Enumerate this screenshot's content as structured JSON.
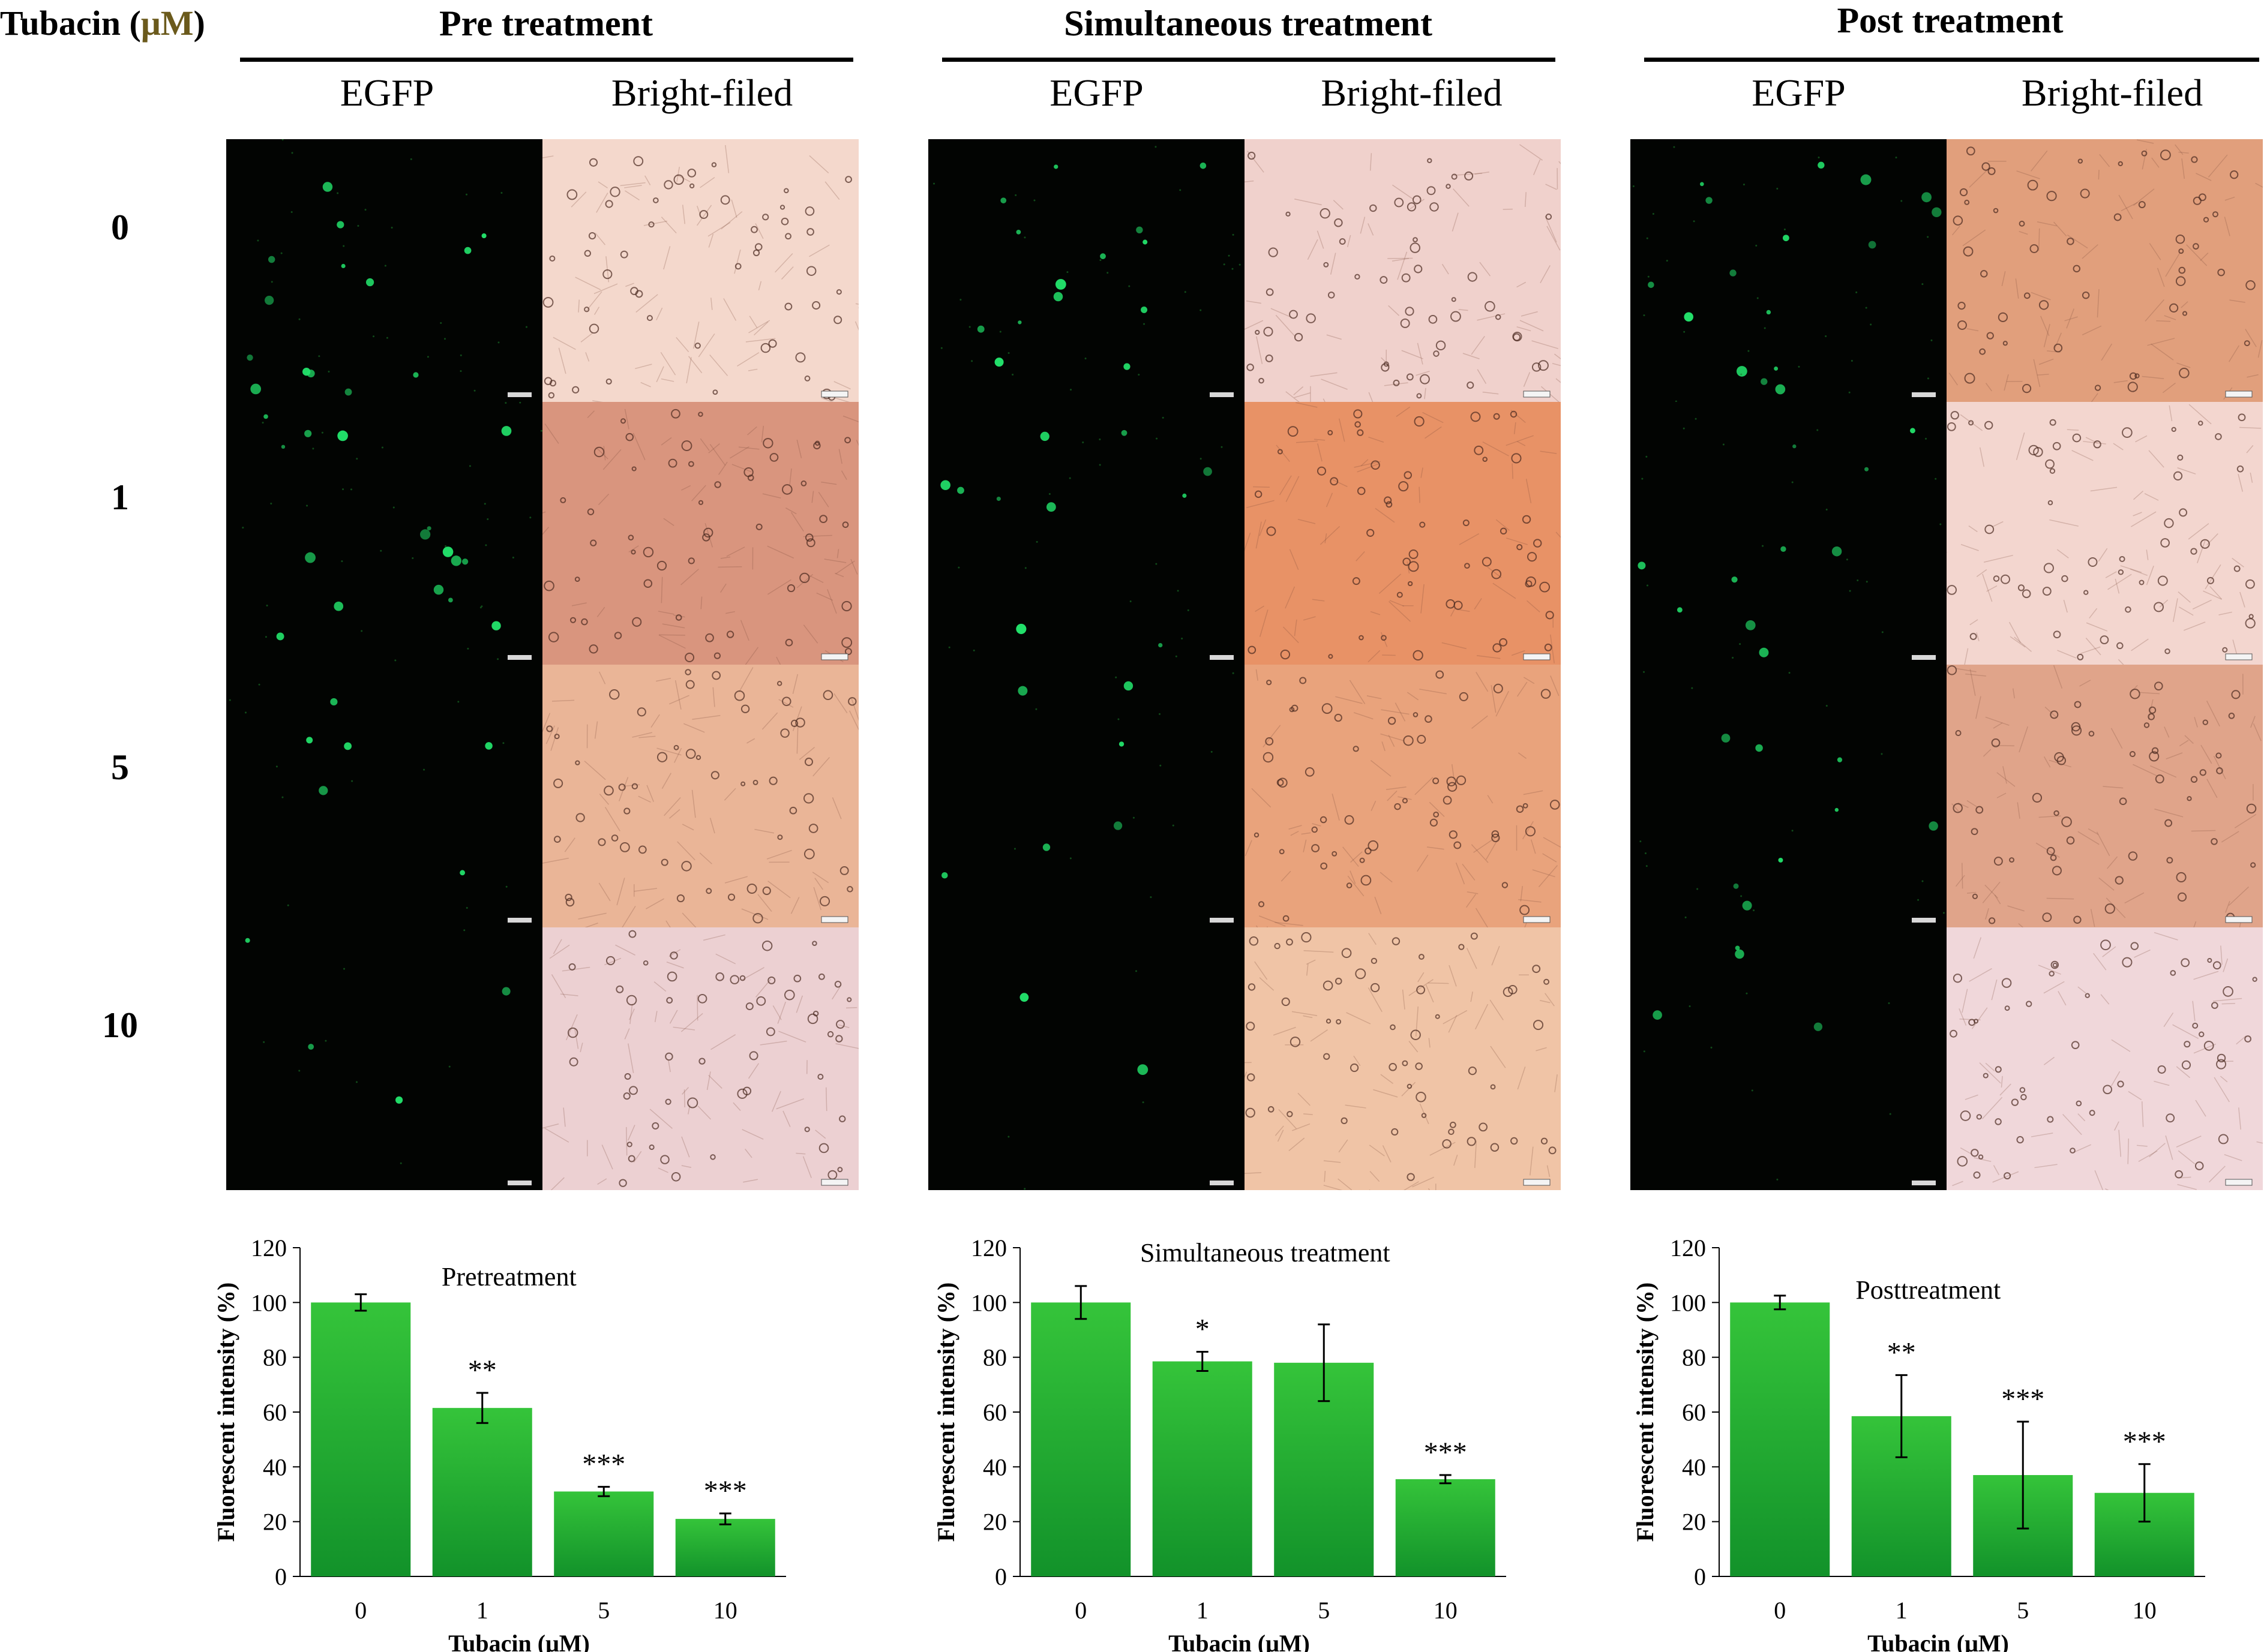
{
  "header": {
    "corner_label_prefix": "Tubacin (",
    "corner_label_unit": "μM",
    "corner_label_suffix": ")"
  },
  "rows": [
    "0",
    "1",
    "5",
    "10"
  ],
  "groups": [
    {
      "title": "Pre treatment",
      "columns": [
        "EGFP",
        "Bright-filed"
      ],
      "bright_tints": [
        "#f4d8cc",
        "#d9957e",
        "#eab597",
        "#ecd0d2"
      ]
    },
    {
      "title": "Simultaneous treatment",
      "columns": [
        "EGFP",
        "Bright-filed"
      ],
      "bright_tints": [
        "#f0d1cc",
        "#e89266",
        "#e9a37c",
        "#f0c4a6"
      ]
    },
    {
      "title": "Post treatment",
      "columns": [
        "EGFP",
        "Bright-filed"
      ],
      "bright_tints": [
        "#e19f7c",
        "#f3d6cf",
        "#e0a48a",
        "#f0d7da"
      ]
    }
  ],
  "colors": {
    "bar_top": "#35c43a",
    "bar_bottom": "#12922a",
    "egfp_dot": "#22e06a",
    "egfp_bg": "#020402"
  },
  "chart_data": [
    {
      "type": "bar",
      "title": "Pretreatment",
      "categories": [
        "0",
        "1",
        "5",
        "10"
      ],
      "values": [
        100,
        61.5,
        31,
        21
      ],
      "errors": [
        3,
        5.5,
        1.7,
        2
      ],
      "significance": [
        "",
        "**",
        "***",
        "***"
      ],
      "xlabel": "Tubacin (μM)",
      "ylabel": "Fluorescent intensity (%)",
      "ylim": [
        0,
        120
      ],
      "yticks": [
        "0",
        "20",
        "40",
        "60",
        "80",
        "100",
        "120"
      ],
      "grid": false
    },
    {
      "type": "bar",
      "title": "Simultaneous treatment",
      "categories": [
        "0",
        "1",
        "5",
        "10"
      ],
      "values": [
        100,
        78.5,
        78,
        35.5
      ],
      "errors": [
        6,
        3.5,
        14,
        1.5
      ],
      "significance": [
        "",
        "*",
        "",
        "***"
      ],
      "xlabel": "Tubacin (μM)",
      "ylabel": "Fluorescent intensity (%)",
      "ylim": [
        0,
        120
      ],
      "yticks": [
        "0",
        "20",
        "40",
        "60",
        "80",
        "100",
        "120"
      ],
      "grid": false
    },
    {
      "type": "bar",
      "title": "Posttreatment",
      "categories": [
        "0",
        "1",
        "5",
        "10"
      ],
      "values": [
        100,
        58.5,
        37,
        30.5
      ],
      "errors": [
        2.5,
        15,
        19.5,
        10.5
      ],
      "significance": [
        "",
        "**",
        "***",
        "***"
      ],
      "xlabel": "Tubacin (μM)",
      "ylabel": "Fluorescent intensity (%)",
      "ylim": [
        0,
        120
      ],
      "yticks": [
        "0",
        "20",
        "40",
        "60",
        "80",
        "100",
        "120"
      ],
      "grid": false
    }
  ]
}
